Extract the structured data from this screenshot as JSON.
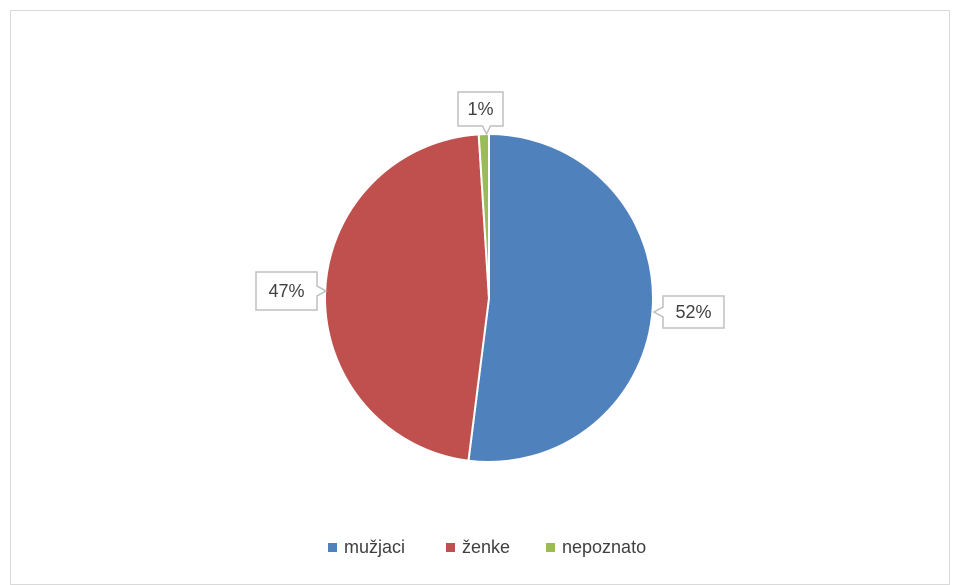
{
  "chart_data": {
    "type": "pie",
    "title": "",
    "categories": [
      "mužjaci",
      "ženke",
      "nepoznato"
    ],
    "values": [
      52,
      47,
      1
    ],
    "labels": [
      "52%",
      "47%",
      "1%"
    ],
    "colors": [
      "#4f81bd",
      "#c0504d",
      "#9bbb59"
    ],
    "legend": "bottom",
    "start_angle_deg": 0,
    "direction": "clockwise"
  }
}
